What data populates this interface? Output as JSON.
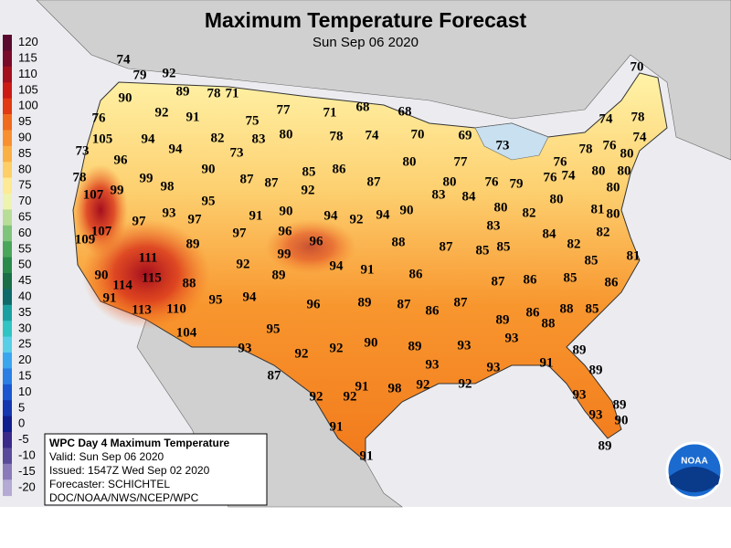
{
  "header": {
    "title": "Maximum Temperature Forecast",
    "subtitle": "Sun Sep 06 2020"
  },
  "legend": {
    "labels": [
      120,
      115,
      110,
      105,
      100,
      95,
      90,
      85,
      80,
      75,
      70,
      65,
      60,
      55,
      50,
      45,
      40,
      35,
      30,
      25,
      20,
      15,
      10,
      5,
      0,
      -5,
      -10,
      -15,
      -20
    ],
    "colors": [
      "#5a0a2e",
      "#7a0a2a",
      "#a40f1e",
      "#cc1a14",
      "#e23a12",
      "#f06a1c",
      "#f89030",
      "#fbb044",
      "#fdcf66",
      "#fdea94",
      "#eef3b0",
      "#b8dd98",
      "#7fc47a",
      "#4aa65a",
      "#2a8a4a",
      "#1a6f46",
      "#0f6a6a",
      "#1aa0a0",
      "#30c4c4",
      "#58cfe6",
      "#3aa6ee",
      "#2a7ee4",
      "#1a56d0",
      "#1436b0",
      "#0f1e8e",
      "#3a2a8a",
      "#5a4a9a",
      "#8a7aba",
      "#b4aad4"
    ]
  },
  "info": {
    "lines": [
      "WPC Day 4 Maximum Temperature",
      "Valid: Sun Sep 06 2020",
      "Issued: 1547Z Wed Sep 02 2020",
      "Forecaster: SCHICHTEL",
      "DOC/NOAA/NWS/NCEP/WPC"
    ]
  },
  "logo": "NOAA",
  "stations": [
    74,
    79,
    92,
    89,
    78,
    71,
    70,
    90,
    92,
    91,
    75,
    77,
    71,
    68,
    68,
    74,
    78,
    76,
    105,
    94,
    94,
    82,
    83,
    80,
    78,
    74,
    70,
    69,
    73,
    78,
    76,
    74,
    73,
    96,
    73,
    90,
    85,
    86,
    87,
    80,
    77,
    76,
    79,
    76,
    80,
    80,
    80,
    76,
    74,
    80,
    80,
    78,
    99,
    99,
    98,
    87,
    87,
    92,
    80,
    83,
    84,
    107,
    95,
    93,
    97,
    97,
    91,
    90,
    94,
    92,
    94,
    90,
    80,
    82,
    81,
    80,
    107,
    96,
    96,
    83,
    84,
    82,
    109,
    89,
    97,
    99,
    88,
    87,
    85,
    85,
    82,
    111,
    92,
    94,
    91,
    85,
    81,
    90,
    114,
    115,
    88,
    89,
    86,
    87,
    86,
    85,
    86,
    91,
    113,
    110,
    95,
    94,
    96,
    89,
    87,
    86,
    87,
    86,
    88,
    85,
    104,
    95,
    89,
    88,
    93,
    90,
    92,
    89,
    93,
    89,
    93,
    92,
    93,
    93,
    91,
    89,
    87,
    91,
    92,
    98,
    92,
    92,
    92,
    93,
    89,
    91,
    93,
    90,
    91,
    89
  ]
}
